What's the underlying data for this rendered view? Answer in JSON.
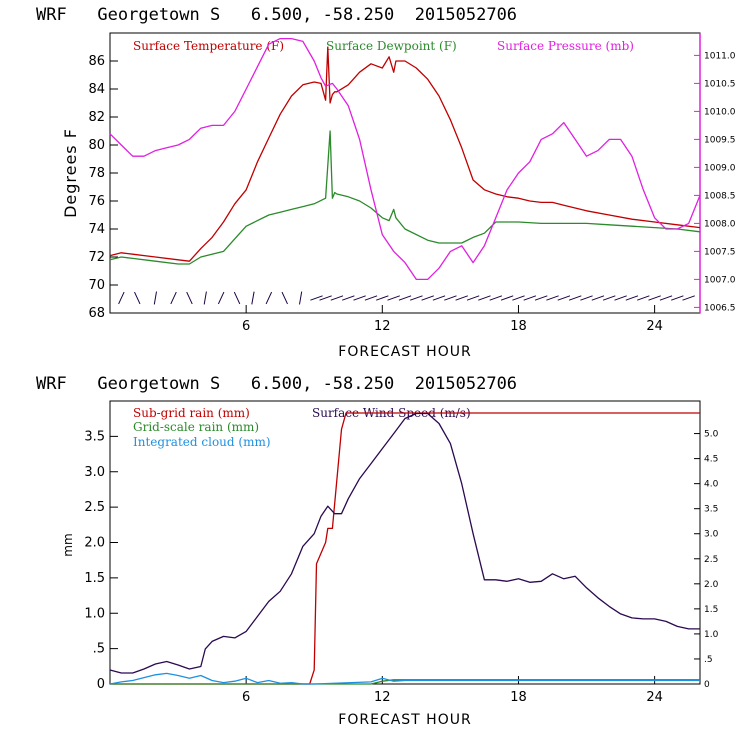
{
  "chart_data": [
    {
      "type": "line",
      "title": "WRF   Georgetown S   6.500, -58.250  2015052706",
      "xlabel": "FORECAST HOUR",
      "ylabel": "Degrees F",
      "xlim": [
        0,
        26
      ],
      "x_ticks": [
        "6",
        "12",
        "18",
        "24"
      ],
      "ylim": [
        68,
        88
      ],
      "y_ticks": [
        "68",
        "70",
        "72",
        "74",
        "76",
        "78",
        "80",
        "82",
        "84",
        "86"
      ],
      "y2lim": [
        1006.4,
        1011.4
      ],
      "y2_ticks": [
        "1006.5",
        "1007.0",
        "1007.5",
        "1008.0",
        "1008.5",
        "1009.0",
        "1009.5",
        "1010.0",
        "1010.5",
        "1011.0"
      ],
      "legend": "top",
      "series": [
        {
          "name": "Surface Temperature (F)",
          "color": "#c00000",
          "axis": "left",
          "x": [
            0,
            0.5,
            1,
            2,
            3,
            3.5,
            4,
            4.5,
            5,
            5.5,
            6,
            6.5,
            7,
            7.5,
            8,
            8.5,
            9,
            9.3,
            9.5,
            9.6,
            9.7,
            9.8,
            9.9,
            10,
            10.5,
            11,
            11.5,
            12,
            12.3,
            12.5,
            12.6,
            13,
            13.5,
            14,
            14.5,
            15,
            15.5,
            16,
            16.5,
            17,
            17.5,
            18,
            18.5,
            19,
            19.5,
            20,
            21,
            22,
            23,
            24,
            25,
            26
          ],
          "values": [
            72.1,
            72.3,
            72.2,
            72.0,
            71.8,
            71.7,
            72.6,
            73.4,
            74.5,
            75.8,
            76.8,
            78.8,
            80.5,
            82.2,
            83.5,
            84.3,
            84.5,
            84.4,
            83.2,
            87.0,
            83.0,
            83.6,
            83.8,
            83.8,
            84.3,
            85.2,
            85.8,
            85.5,
            86.3,
            85.2,
            86.0,
            86.0,
            85.5,
            84.7,
            83.5,
            81.8,
            79.8,
            77.5,
            76.8,
            76.5,
            76.3,
            76.2,
            76.0,
            75.9,
            75.9,
            75.7,
            75.3,
            75.0,
            74.7,
            74.5,
            74.3,
            74.1
          ]
        },
        {
          "name": "Surface Dewpoint (F)",
          "color": "#2b8a2b",
          "axis": "left",
          "x": [
            0,
            0.5,
            1,
            2,
            3,
            3.5,
            4,
            5,
            5.5,
            6,
            6.5,
            7,
            7.5,
            8,
            8.5,
            9,
            9.5,
            9.7,
            9.8,
            9.9,
            10,
            10.5,
            11,
            11.5,
            12,
            12.3,
            12.5,
            12.6,
            13,
            14,
            14.5,
            15,
            15.5,
            16,
            16.5,
            17,
            18,
            19,
            20,
            21,
            22,
            23,
            24,
            25,
            26
          ],
          "values": [
            71.8,
            72.0,
            71.9,
            71.7,
            71.5,
            71.5,
            72.0,
            72.4,
            73.3,
            74.2,
            74.6,
            75.0,
            75.2,
            75.4,
            75.6,
            75.8,
            76.2,
            81.0,
            76.2,
            76.6,
            76.5,
            76.3,
            76.0,
            75.5,
            74.8,
            74.6,
            75.4,
            74.8,
            74.0,
            73.2,
            73.0,
            73.0,
            73.0,
            73.4,
            73.7,
            74.5,
            74.5,
            74.4,
            74.4,
            74.4,
            74.3,
            74.2,
            74.1,
            74.0,
            73.8
          ]
        },
        {
          "name": "Surface Pressure (mb)",
          "color": "#e020e0",
          "axis": "right",
          "x": [
            0,
            0.5,
            1,
            1.5,
            2,
            2.5,
            3,
            3.5,
            4,
            4.5,
            5,
            5.5,
            6,
            6.5,
            7,
            7.5,
            8,
            8.5,
            9,
            9.3,
            9.5,
            9.8,
            10,
            10.5,
            11,
            11.5,
            12,
            12.5,
            13,
            13.5,
            14,
            14.5,
            15,
            15.5,
            16,
            16.5,
            17,
            17.5,
            18,
            18.5,
            19,
            19.5,
            20,
            20.5,
            21,
            21.5,
            22,
            22.5,
            23,
            23.5,
            24,
            24.5,
            25,
            25.5,
            26
          ],
          "values": [
            1009.6,
            1009.4,
            1009.2,
            1009.2,
            1009.3,
            1009.35,
            1009.4,
            1009.5,
            1009.7,
            1009.75,
            1009.75,
            1010.0,
            1010.4,
            1010.8,
            1011.2,
            1011.3,
            1011.3,
            1011.25,
            1010.9,
            1010.6,
            1010.45,
            1010.5,
            1010.4,
            1010.1,
            1009.5,
            1008.6,
            1007.8,
            1007.5,
            1007.3,
            1007.0,
            1007.0,
            1007.2,
            1007.5,
            1007.6,
            1007.3,
            1007.6,
            1008.1,
            1008.6,
            1008.9,
            1009.1,
            1009.5,
            1009.6,
            1009.8,
            1009.5,
            1009.2,
            1009.3,
            1009.5,
            1009.5,
            1009.2,
            1008.6,
            1008.1,
            1007.9,
            1007.9,
            1008.0,
            1008.5
          ]
        }
      ]
    },
    {
      "type": "line",
      "title": "WRF   Georgetown S   6.500, -58.250  2015052706",
      "xlabel": "FORECAST HOUR",
      "ylabel": "mm",
      "xlim": [
        0,
        26
      ],
      "x_ticks": [
        "6",
        "12",
        "18",
        "24"
      ],
      "ylim": [
        0,
        4.0
      ],
      "y_ticks": [
        "0",
        ".5",
        "1.0",
        "1.5",
        "2.0",
        "2.5",
        "3.0",
        "3.5"
      ],
      "y2lim": [
        0,
        5.65
      ],
      "y2_ticks": [
        "0",
        ".5",
        "1.0",
        "1.5",
        "2.0",
        "2.5",
        "3.0",
        "3.5",
        "4.0",
        "4.5",
        "5.0"
      ],
      "legend": "top",
      "series": [
        {
          "name": "Sub-grid rain (mm)",
          "color": "#c00000",
          "axis": "left",
          "x": [
            0,
            8.8,
            9.0,
            9.1,
            9.5,
            9.6,
            9.8,
            10.2,
            10.4,
            26
          ],
          "values": [
            0,
            0,
            0.2,
            1.7,
            2.0,
            2.2,
            2.2,
            3.6,
            3.83,
            3.83
          ]
        },
        {
          "name": "Grid-scale rain (mm)",
          "color": "#2b8a2b",
          "axis": "left",
          "x": [
            0,
            11.5,
            12.0,
            12.5,
            26
          ],
          "values": [
            0,
            0,
            0.04,
            0.06,
            0.06
          ]
        },
        {
          "name": "Integrated cloud (mm)",
          "color": "#1e90e0",
          "axis": "left",
          "x": [
            0,
            0.5,
            1,
            1.5,
            2,
            2.5,
            3,
            3.5,
            4,
            4.5,
            5,
            5.5,
            6,
            6.5,
            7,
            7.5,
            8,
            8.5,
            9,
            11.5,
            12,
            12.5,
            13,
            26
          ],
          "values": [
            0,
            0.03,
            0.05,
            0.09,
            0.13,
            0.15,
            0.12,
            0.08,
            0.12,
            0.05,
            0.02,
            0.04,
            0.08,
            0.02,
            0.05,
            0.01,
            0.02,
            0,
            0,
            0.03,
            0.08,
            0.04,
            0.05,
            0.05
          ]
        },
        {
          "name": "Surface Wind Speed (m/s)",
          "color": "#2a0a50",
          "axis": "right",
          "x": [
            0,
            0.5,
            1,
            1.5,
            2,
            2.5,
            3,
            3.5,
            4,
            4.2,
            4.5,
            5,
            5.5,
            6,
            6.5,
            7,
            7.5,
            8,
            8.5,
            9,
            9.3,
            9.6,
            9.9,
            10.2,
            10.5,
            11,
            11.5,
            12,
            12.5,
            13,
            13.5,
            14,
            14.5,
            15,
            15.5,
            16,
            16.5,
            17,
            17.5,
            18,
            18.5,
            19,
            19.5,
            20,
            20.5,
            21,
            21.5,
            22,
            22.5,
            23,
            23.5,
            24,
            24.5,
            25,
            25.5,
            26
          ],
          "values": [
            0.28,
            0.22,
            0.22,
            0.3,
            0.4,
            0.45,
            0.38,
            0.3,
            0.35,
            0.7,
            0.85,
            0.95,
            0.92,
            1.05,
            1.35,
            1.65,
            1.85,
            2.2,
            2.75,
            3.0,
            3.35,
            3.55,
            3.4,
            3.4,
            3.7,
            4.1,
            4.4,
            4.7,
            5.0,
            5.3,
            5.4,
            5.4,
            5.2,
            4.8,
            4.0,
            3.0,
            2.08,
            2.08,
            2.05,
            2.1,
            2.03,
            2.05,
            2.2,
            2.1,
            2.15,
            1.92,
            1.72,
            1.55,
            1.4,
            1.32,
            1.3,
            1.3,
            1.25,
            1.15,
            1.1,
            1.1
          ]
        }
      ]
    }
  ],
  "wind_barbs": {
    "x": [
      0.5,
      1.2,
      2.0,
      2.8,
      3.5,
      4.2,
      4.9,
      5.6,
      6.3,
      7.0,
      7.7,
      8.4,
      9.1,
      9.5,
      10.0,
      10.5,
      11.0,
      11.5,
      12.0,
      12.5,
      13.0,
      13.5,
      14.0,
      14.5,
      15.0,
      15.5,
      16.0,
      16.5,
      17.0,
      17.5,
      18.0,
      18.5,
      19.0,
      19.5,
      20.0,
      20.5,
      21.0,
      21.5,
      22.0,
      22.5,
      23.0,
      23.5,
      24.0,
      24.5,
      25.0,
      25.5
    ],
    "color": "#1a0040"
  }
}
